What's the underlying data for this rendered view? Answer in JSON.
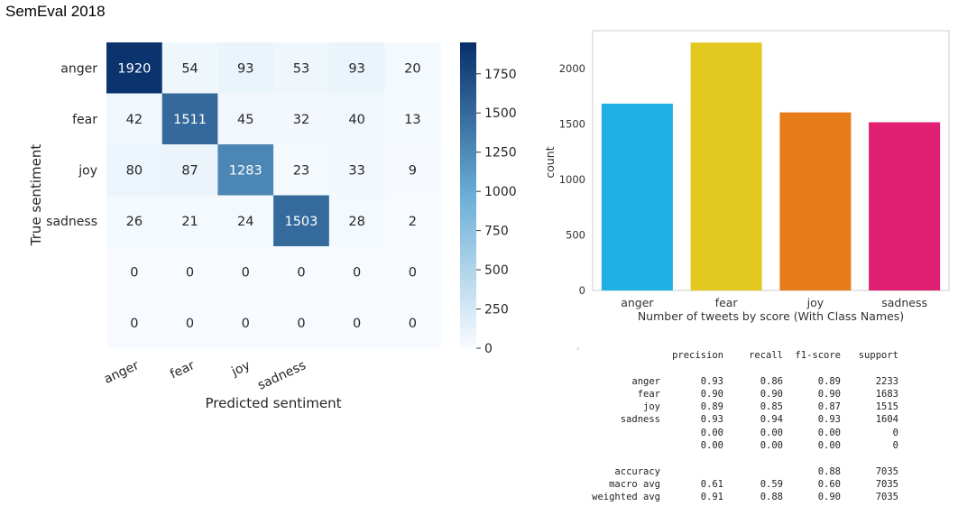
{
  "title": "SemEval 2018",
  "chart_data": [
    {
      "type": "heatmap",
      "xlabel": "Predicted sentiment",
      "ylabel": "True sentiment",
      "x_tick_labels": [
        "anger",
        "fear",
        "joy",
        "sadness",
        "",
        ""
      ],
      "y_tick_labels": [
        "anger",
        "fear",
        "joy",
        "sadness",
        "",
        ""
      ],
      "matrix": [
        [
          1920,
          54,
          93,
          53,
          93,
          20
        ],
        [
          42,
          1511,
          45,
          32,
          40,
          13
        ],
        [
          80,
          87,
          1283,
          23,
          33,
          9
        ],
        [
          26,
          21,
          24,
          1503,
          28,
          2
        ],
        [
          0,
          0,
          0,
          0,
          0,
          0
        ],
        [
          0,
          0,
          0,
          0,
          0,
          0
        ]
      ],
      "colorbar": {
        "min": 0,
        "max": 1950,
        "ticks": [
          0,
          250,
          500,
          750,
          1000,
          1250,
          1500,
          1750
        ]
      },
      "colormap": {
        "low": "#f7fbff",
        "mid": "#6baed6",
        "high": "#08306b"
      }
    },
    {
      "type": "bar",
      "categories": [
        "anger",
        "fear",
        "joy",
        "sadness"
      ],
      "values": [
        1683,
        2233,
        1604,
        1515
      ],
      "colors": [
        "#1fb0e3",
        "#e3c91f",
        "#e57c19",
        "#e01f73"
      ],
      "xlabel": "Number of tweets by score (With Class Names)",
      "ylabel": "count",
      "ylim": [
        0,
        2340
      ],
      "yticks": [
        0,
        500,
        1000,
        1500,
        2000
      ]
    },
    {
      "type": "table",
      "prompt_glyph": "›",
      "columns": [
        "",
        "precision",
        "recall",
        "f1-score",
        "support"
      ],
      "rows": [
        [
          "anger",
          "0.93",
          "0.86",
          "0.89",
          "2233"
        ],
        [
          "fear",
          "0.90",
          "0.90",
          "0.90",
          "1683"
        ],
        [
          "joy",
          "0.89",
          "0.85",
          "0.87",
          "1515"
        ],
        [
          "sadness",
          "0.93",
          "0.94",
          "0.93",
          "1604"
        ],
        [
          "",
          "0.00",
          "0.00",
          "0.00",
          "0"
        ],
        [
          "",
          "0.00",
          "0.00",
          "0.00",
          "0"
        ],
        [
          "accuracy",
          "",
          "",
          "0.88",
          "7035"
        ],
        [
          "macro avg",
          "0.61",
          "0.59",
          "0.60",
          "7035"
        ],
        [
          "weighted avg",
          "0.91",
          "0.88",
          "0.90",
          "7035"
        ]
      ]
    }
  ]
}
